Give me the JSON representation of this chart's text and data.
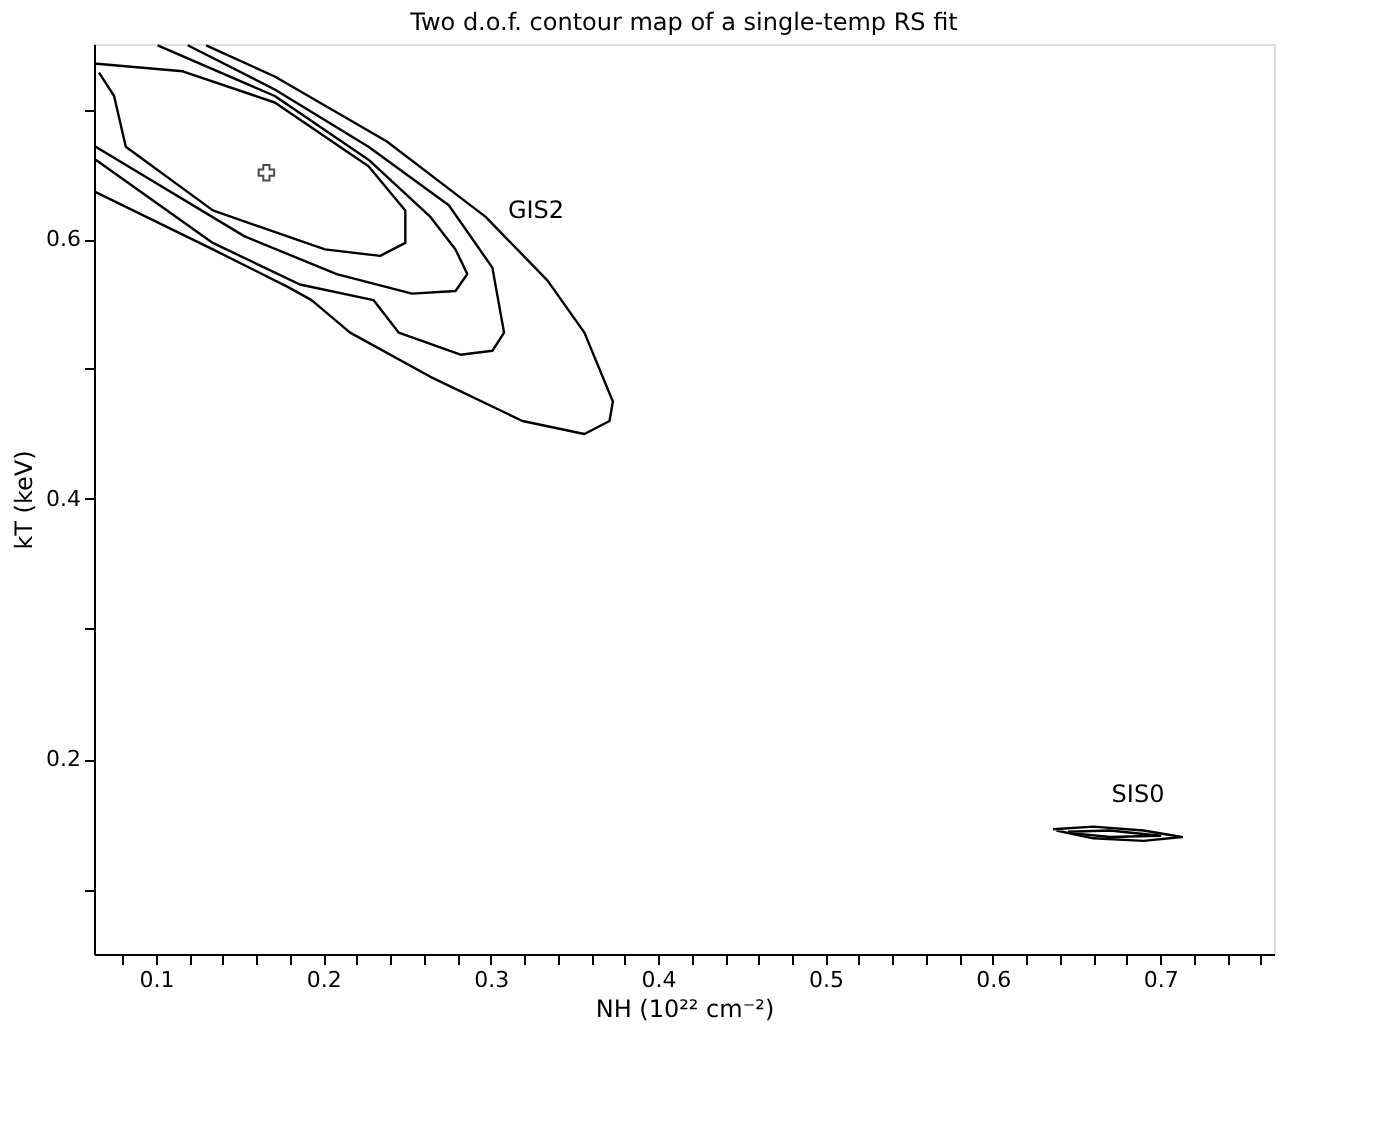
{
  "chart_data": {
    "type": "line",
    "title": "Two d.o.f. contour map of a single-temp RS fit",
    "xlabel": "NH (10²² cm⁻²)",
    "ylabel": "kT (keV)",
    "xlim": [
      0.063,
      0.768
    ],
    "ylim": [
      0.05,
      0.75
    ],
    "xticks": [
      {
        "value": 0.08,
        "label": null
      },
      0.1,
      {
        "value": 0.12,
        "label": null
      },
      {
        "value": 0.14,
        "label": null
      },
      {
        "value": 0.16,
        "label": null
      },
      {
        "value": 0.18,
        "label": null
      },
      0.2,
      {
        "value": 0.22,
        "label": null
      },
      {
        "value": 0.24,
        "label": null
      },
      {
        "value": 0.26,
        "label": null
      },
      {
        "value": 0.28,
        "label": null
      },
      0.3,
      {
        "value": 0.32,
        "label": null
      },
      {
        "value": 0.34,
        "label": null
      },
      {
        "value": 0.36,
        "label": null
      },
      {
        "value": 0.38,
        "label": null
      },
      0.4,
      {
        "value": 0.42,
        "label": null
      },
      {
        "value": 0.44,
        "label": null
      },
      {
        "value": 0.46,
        "label": null
      },
      {
        "value": 0.48,
        "label": null
      },
      0.5,
      {
        "value": 0.52,
        "label": null
      },
      {
        "value": 0.54,
        "label": null
      },
      {
        "value": 0.56,
        "label": null
      },
      {
        "value": 0.58,
        "label": null
      },
      0.6,
      {
        "value": 0.62,
        "label": null
      },
      {
        "value": 0.64,
        "label": null
      },
      {
        "value": 0.66,
        "label": null
      },
      {
        "value": 0.68,
        "label": null
      },
      0.7,
      {
        "value": 0.72,
        "label": null
      },
      {
        "value": 0.74,
        "label": null
      },
      {
        "value": 0.76,
        "label": null
      }
    ],
    "yticks": [
      {
        "value": 0.1,
        "label": null
      },
      0.2,
      {
        "value": 0.3,
        "label": null
      },
      0.4,
      {
        "value": 0.5,
        "label": null
      },
      0.6,
      {
        "value": 0.7,
        "label": null
      }
    ],
    "grid": false,
    "line_style": "solid",
    "marker": "none",
    "series": [
      {
        "color": "#000000",
        "x": [
          0.13,
          0.171,
          0.238,
          0.297,
          0.334,
          0.356,
          0.373,
          0.371,
          0.356,
          0.319,
          0.264,
          0.216,
          0.193,
          0.179,
          0.134,
          0.064
        ],
        "values": [
          0.749,
          0.725,
          0.675,
          0.617,
          0.568,
          0.528,
          0.475,
          0.46,
          0.45,
          0.46,
          0.494,
          0.528,
          0.553,
          0.563,
          0.592,
          0.636
        ]
      },
      {
        "color": "#000000",
        "x": [
          0.119,
          0.171,
          0.227,
          0.275,
          0.301,
          0.308,
          0.301,
          0.282,
          0.245,
          0.23,
          0.186,
          0.134,
          0.064
        ],
        "values": [
          0.749,
          0.715,
          0.671,
          0.626,
          0.578,
          0.528,
          0.514,
          0.511,
          0.528,
          0.553,
          0.565,
          0.597,
          0.661
        ]
      },
      {
        "color": "#000000",
        "x": [
          0.101,
          0.171,
          0.227,
          0.264,
          0.279,
          0.286,
          0.279,
          0.253,
          0.208,
          0.153,
          0.064
        ],
        "values": [
          0.749,
          0.71,
          0.661,
          0.617,
          0.592,
          0.573,
          0.56,
          0.558,
          0.573,
          0.602,
          0.671
        ]
      },
      {
        "color": "#000000",
        "x": [
          0.063,
          0.116,
          0.171,
          0.227,
          0.249,
          0.249,
          0.234,
          0.201,
          0.134,
          0.082,
          0.075,
          0.066
        ],
        "values": [
          0.735,
          0.729,
          0.705,
          0.656,
          0.622,
          0.597,
          0.587,
          0.592,
          0.622,
          0.671,
          0.71,
          0.728
        ]
      },
      {
        "color": "#000000",
        "x": [
          0.636,
          0.66,
          0.69,
          0.713,
          0.69,
          0.66,
          0.638
        ],
        "values": [
          0.146,
          0.148,
          0.145,
          0.14,
          0.137,
          0.139,
          0.145
        ]
      },
      {
        "color": "#000000",
        "x": [
          0.645,
          0.67,
          0.7,
          0.67,
          0.647
        ],
        "values": [
          0.144,
          0.145,
          0.141,
          0.14,
          0.143
        ]
      },
      {
        "type": "scatter",
        "marker": "cross",
        "color": "#000000",
        "x": [
          0.166
        ],
        "values": [
          0.651
        ]
      }
    ],
    "annotations": [
      "GIS2",
      "SIS0"
    ]
  }
}
